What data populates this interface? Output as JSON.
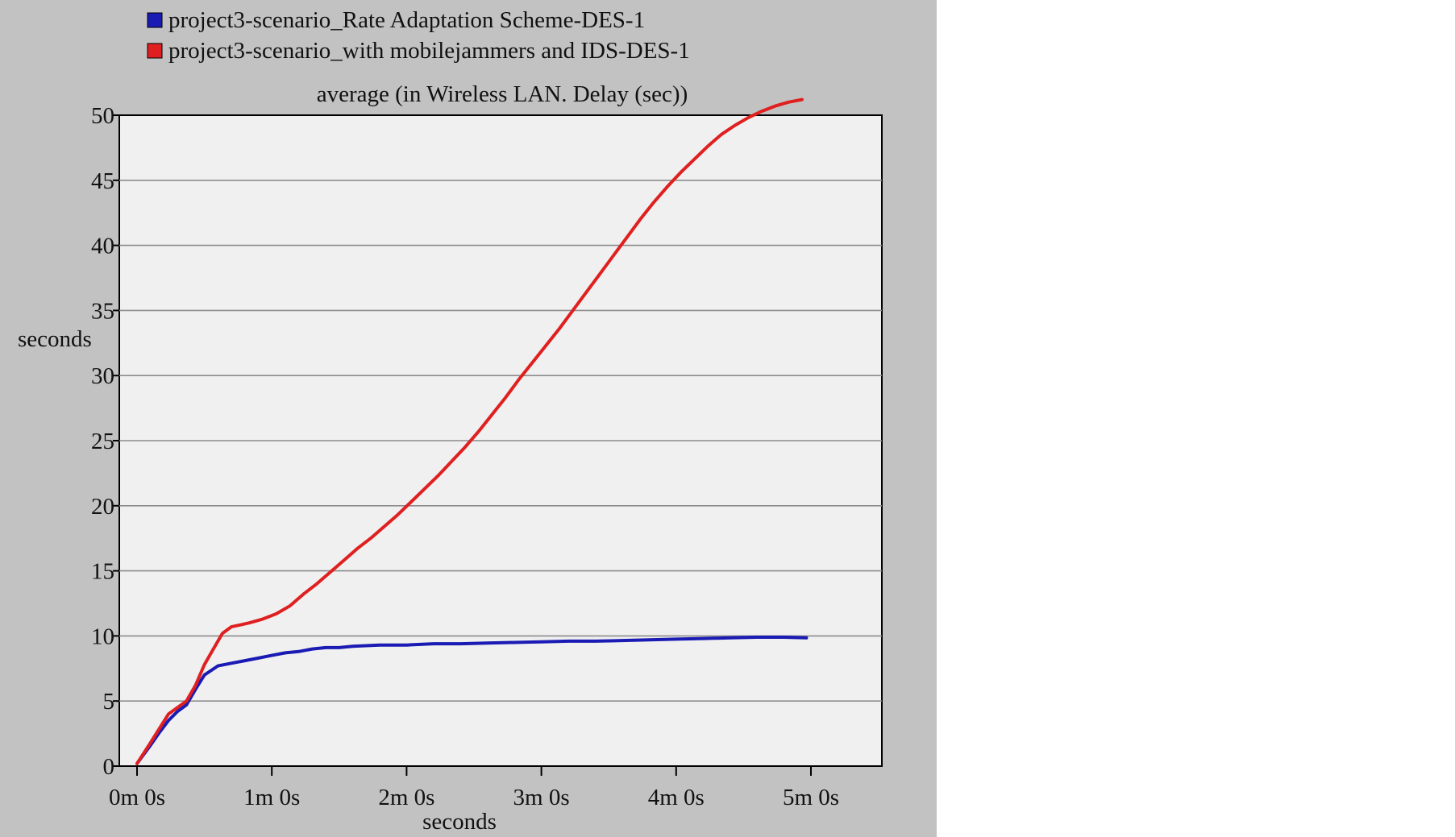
{
  "chart_data": {
    "type": "line",
    "title": "average (in Wireless LAN. Delay (sec))",
    "xlabel": "seconds",
    "ylabel": "seconds",
    "x_unit": "seconds",
    "xlim": [
      0,
      300
    ],
    "ylim": [
      0,
      50
    ],
    "x_ticks": [
      {
        "value": 0,
        "label": "0m 0s"
      },
      {
        "value": 60,
        "label": "1m 0s"
      },
      {
        "value": 120,
        "label": "2m 0s"
      },
      {
        "value": 180,
        "label": "3m 0s"
      },
      {
        "value": 240,
        "label": "4m 0s"
      },
      {
        "value": 300,
        "label": "5m 0s"
      }
    ],
    "y_ticks": [
      0,
      5,
      10,
      15,
      20,
      25,
      30,
      35,
      40,
      45,
      50
    ],
    "grid": true,
    "legend_position": "top-left",
    "series": [
      {
        "name": "project3-scenario_Rate Adaptation Scheme-DES-1",
        "color": "#1a1ab4",
        "x": [
          0,
          6,
          10,
          14,
          18,
          22,
          26,
          30,
          36,
          42,
          48,
          54,
          60,
          66,
          72,
          78,
          84,
          90,
          96,
          102,
          108,
          114,
          120,
          132,
          144,
          156,
          168,
          180,
          192,
          204,
          216,
          228,
          240,
          252,
          264,
          276,
          288,
          298
        ],
        "y": [
          0.2,
          1.6,
          2.6,
          3.5,
          4.2,
          4.7,
          5.9,
          7.0,
          7.7,
          7.9,
          8.1,
          8.3,
          8.5,
          8.7,
          8.8,
          9.0,
          9.1,
          9.1,
          9.2,
          9.25,
          9.3,
          9.3,
          9.3,
          9.4,
          9.4,
          9.45,
          9.5,
          9.55,
          9.6,
          9.6,
          9.65,
          9.7,
          9.75,
          9.8,
          9.85,
          9.9,
          9.9,
          9.85
        ]
      },
      {
        "name": "project3-scenario_with mobilejammers and IDS-DES-1",
        "color": "#e02020",
        "x": [
          0,
          6,
          10,
          14,
          18,
          22,
          26,
          30,
          34,
          38,
          42,
          46,
          50,
          56,
          62,
          68,
          74,
          80,
          86,
          92,
          98,
          104,
          110,
          116,
          122,
          128,
          134,
          140,
          146,
          152,
          158,
          164,
          170,
          176,
          182,
          188,
          194,
          200,
          206,
          212,
          218,
          224,
          230,
          236,
          242,
          248,
          254,
          260,
          266,
          272,
          278,
          284,
          290,
          296
        ],
        "y": [
          0.2,
          1.8,
          2.9,
          4.0,
          4.5,
          5.0,
          6.2,
          7.8,
          9.0,
          10.2,
          10.7,
          10.85,
          11.0,
          11.3,
          11.7,
          12.3,
          13.2,
          14.0,
          14.9,
          15.8,
          16.7,
          17.5,
          18.4,
          19.3,
          20.3,
          21.3,
          22.3,
          23.4,
          24.5,
          25.7,
          27.0,
          28.3,
          29.7,
          31.0,
          32.3,
          33.6,
          35.0,
          36.4,
          37.8,
          39.2,
          40.6,
          42.0,
          43.3,
          44.5,
          45.6,
          46.6,
          47.6,
          48.5,
          49.2,
          49.8,
          50.3,
          50.7,
          51.0,
          51.2
        ]
      }
    ]
  },
  "colors": {
    "panel_bg": "#c2c2c2",
    "plot_bg": "#f0f0f0",
    "grid": "#8c8c8c"
  }
}
